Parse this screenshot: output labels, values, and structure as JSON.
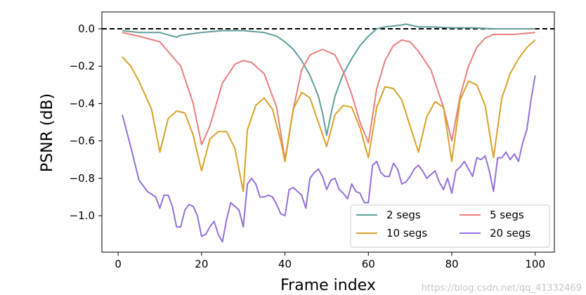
{
  "chart_data": {
    "type": "line",
    "xlabel": "Frame index",
    "ylabel": "PSNR (dB)",
    "xlim": [
      -3.9,
      104.6
    ],
    "ylim": [
      -1.195,
      0.09
    ],
    "xticks": [
      0,
      20,
      40,
      60,
      80,
      100
    ],
    "yticks": [
      0.0,
      -0.2,
      -0.4,
      -0.6,
      -0.8,
      -1.0
    ],
    "ytick_labels": [
      "0.0",
      "−0.2",
      "−0.4",
      "−0.6",
      "−0.8",
      "−1.0"
    ],
    "grid": false,
    "legend_position": "lower-right",
    "legend_columns": 2,
    "reference_line": {
      "y": 0,
      "style": "dashed",
      "color": "#000000"
    },
    "series": [
      {
        "name": "2 segs",
        "color": "#5f9e9c",
        "x": [
          1,
          5,
          10,
          14,
          15,
          20,
          25,
          30,
          35,
          38,
          40,
          42,
          44,
          46,
          48,
          49,
          50,
          51,
          52,
          54,
          56,
          58,
          60,
          62,
          64,
          66,
          68,
          69,
          70,
          72,
          75,
          80,
          85,
          90,
          95,
          100
        ],
        "y": [
          -0.01,
          -0.02,
          -0.02,
          -0.045,
          -0.035,
          -0.02,
          -0.01,
          -0.01,
          -0.02,
          -0.04,
          -0.07,
          -0.11,
          -0.17,
          -0.25,
          -0.36,
          -0.45,
          -0.57,
          -0.46,
          -0.36,
          -0.24,
          -0.16,
          -0.09,
          -0.04,
          0.0,
          0.01,
          0.015,
          0.02,
          0.025,
          0.02,
          0.01,
          0.01,
          0.005,
          0.005,
          0.0,
          0.0,
          0.0
        ]
      },
      {
        "name": "5 segs",
        "color": "#eb7d7d",
        "x": [
          1,
          5,
          10,
          15,
          18,
          20,
          22,
          25,
          28,
          30,
          32,
          35,
          38,
          40,
          42,
          44,
          46,
          48,
          49,
          50,
          52,
          54,
          56,
          58,
          60,
          62,
          64,
          66,
          68,
          70,
          72,
          75,
          78,
          80,
          82,
          84,
          86,
          88,
          90,
          95,
          100
        ],
        "y": [
          -0.02,
          -0.04,
          -0.07,
          -0.2,
          -0.4,
          -0.62,
          -0.52,
          -0.29,
          -0.19,
          -0.17,
          -0.18,
          -0.24,
          -0.42,
          -0.7,
          -0.43,
          -0.22,
          -0.14,
          -0.12,
          -0.11,
          -0.12,
          -0.14,
          -0.23,
          -0.35,
          -0.5,
          -0.61,
          -0.32,
          -0.17,
          -0.09,
          -0.06,
          -0.07,
          -0.12,
          -0.22,
          -0.42,
          -0.6,
          -0.36,
          -0.2,
          -0.1,
          -0.05,
          -0.03,
          -0.03,
          -0.02
        ]
      },
      {
        "name": "10 segs",
        "color": "#d9a128",
        "x": [
          1,
          3,
          5,
          8,
          10,
          12,
          14,
          16,
          18,
          20,
          22,
          24,
          26,
          28,
          30,
          31,
          33,
          35,
          37,
          39,
          40,
          42,
          44,
          46,
          48,
          50,
          52,
          54,
          56,
          58,
          60,
          62,
          64,
          66,
          68,
          70,
          72,
          74,
          76,
          78,
          80,
          82,
          84,
          86,
          88,
          90,
          92,
          94,
          96,
          98,
          100
        ],
        "y": [
          -0.15,
          -0.2,
          -0.28,
          -0.43,
          -0.66,
          -0.48,
          -0.44,
          -0.45,
          -0.57,
          -0.76,
          -0.59,
          -0.55,
          -0.55,
          -0.64,
          -0.87,
          -0.54,
          -0.41,
          -0.37,
          -0.43,
          -0.6,
          -0.71,
          -0.43,
          -0.34,
          -0.37,
          -0.5,
          -0.63,
          -0.46,
          -0.41,
          -0.42,
          -0.53,
          -0.69,
          -0.42,
          -0.31,
          -0.32,
          -0.38,
          -0.52,
          -0.66,
          -0.47,
          -0.39,
          -0.42,
          -0.71,
          -0.38,
          -0.28,
          -0.3,
          -0.41,
          -0.69,
          -0.37,
          -0.24,
          -0.16,
          -0.1,
          -0.06
        ]
      },
      {
        "name": "20 segs",
        "color": "#9370db",
        "x": [
          1,
          3,
          5,
          7,
          9,
          10,
          11,
          12,
          13,
          14,
          15,
          16,
          17,
          18,
          19,
          20,
          21,
          22,
          23,
          24,
          25,
          26,
          27,
          28,
          29,
          30,
          31,
          32,
          33,
          34,
          35,
          36,
          37,
          38,
          39,
          40,
          41,
          42,
          43,
          44,
          45,
          46,
          47,
          48,
          49,
          50,
          51,
          52,
          53,
          54,
          55,
          56,
          57,
          58,
          59,
          60,
          61,
          62,
          63,
          64,
          65,
          66,
          67,
          68,
          69,
          70,
          71,
          72,
          73,
          74,
          75,
          76,
          77,
          78,
          79,
          80,
          81,
          82,
          83,
          84,
          85,
          86,
          87,
          88,
          89,
          90,
          91,
          92,
          93,
          94,
          95,
          96,
          97,
          98,
          99,
          100
        ],
        "y": [
          -0.46,
          -0.63,
          -0.81,
          -0.87,
          -0.9,
          -0.96,
          -0.89,
          -0.89,
          -0.95,
          -1.06,
          -1.06,
          -0.97,
          -0.94,
          -0.95,
          -1.0,
          -1.11,
          -1.1,
          -1.06,
          -1.03,
          -1.1,
          -1.14,
          -1.02,
          -0.93,
          -0.95,
          -0.97,
          -1.06,
          -0.83,
          -0.8,
          -0.83,
          -0.9,
          -0.9,
          -0.89,
          -0.9,
          -0.94,
          -0.99,
          -1.0,
          -0.86,
          -0.85,
          -0.87,
          -0.89,
          -0.96,
          -0.8,
          -0.77,
          -0.75,
          -0.79,
          -0.86,
          -0.81,
          -0.8,
          -0.86,
          -0.88,
          -0.91,
          -0.83,
          -0.87,
          -0.88,
          -0.93,
          -0.93,
          -0.73,
          -0.71,
          -0.77,
          -0.79,
          -0.79,
          -0.72,
          -0.75,
          -0.83,
          -0.82,
          -0.79,
          -0.75,
          -0.73,
          -0.76,
          -0.8,
          -0.78,
          -0.76,
          -0.82,
          -0.86,
          -0.8,
          -0.88,
          -0.76,
          -0.74,
          -0.71,
          -0.75,
          -0.79,
          -0.69,
          -0.7,
          -0.68,
          -0.76,
          -0.87,
          -0.69,
          -0.69,
          -0.66,
          -0.7,
          -0.67,
          -0.71,
          -0.61,
          -0.54,
          -0.38,
          -0.25
        ]
      }
    ]
  },
  "watermark": "https://blog.csdn.net/qq_41332469"
}
